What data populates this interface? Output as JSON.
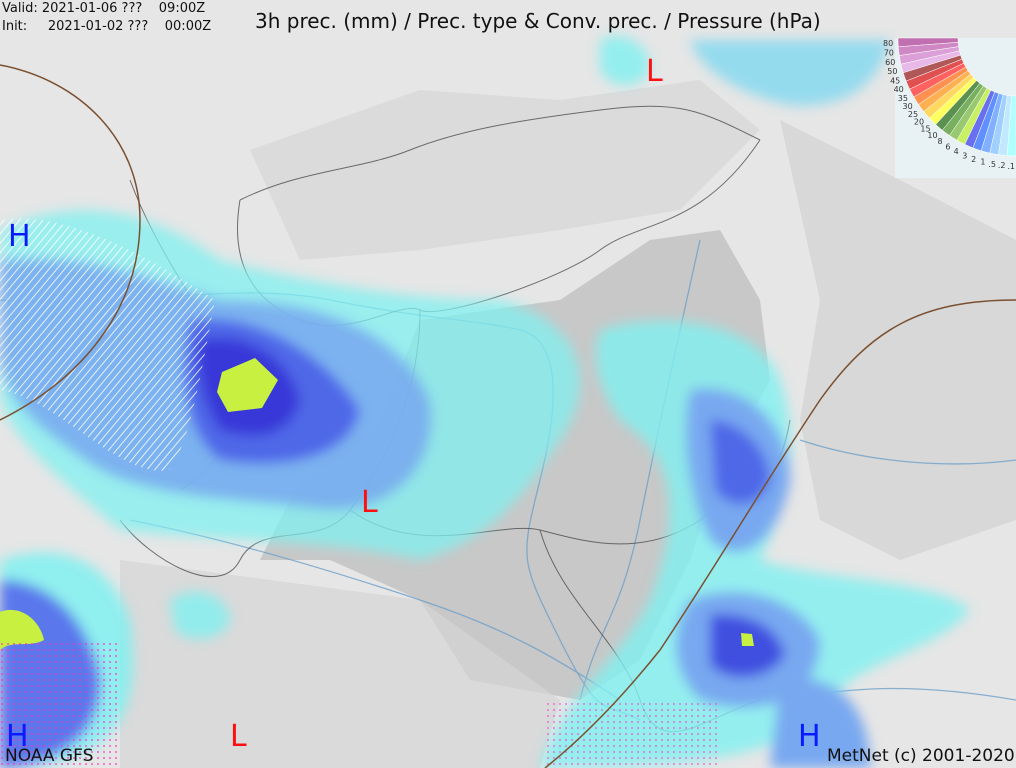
{
  "header": {
    "valid_label": "Valid:",
    "valid_date": "2021-01-06 ???",
    "valid_time": "09:00Z",
    "init_label": "Init:",
    "init_date": "2021-01-02 ???",
    "init_time": "00:00Z",
    "title": "3h prec. (mm) / Prec. type & Conv. prec. / Pressure (hPa)"
  },
  "pressure_centers": [
    {
      "label": "H",
      "color": "#0a1aff"
    },
    {
      "label": "L",
      "color": "#ff1010"
    },
    {
      "label": "L",
      "color": "#ff1010"
    },
    {
      "label": "H",
      "color": "#0a1aff"
    },
    {
      "label": "L",
      "color": "#ff1010"
    },
    {
      "label": "H",
      "color": "#0a1aff"
    }
  ],
  "legend": {
    "values": [
      "80",
      "70",
      "60",
      "50",
      "45",
      "40",
      "35",
      "30",
      "25",
      "20",
      "15",
      "10",
      "8",
      "6",
      "4",
      "3",
      "2",
      "1",
      ".5",
      ".2",
      ".1"
    ],
    "colors": [
      "#c070b0",
      "#d088c4",
      "#dca0d8",
      "#e8b8e8",
      "#b05858",
      "#e05050",
      "#ff6060",
      "#ff9050",
      "#ffb050",
      "#ffd860",
      "#ffff60",
      "#5a9050",
      "#78b060",
      "#98c870",
      "#c8f060",
      "#6870f0",
      "#6090ff",
      "#80b0ff",
      "#a0d0ff",
      "#c0e8ff",
      "#b0ffff"
    ]
  },
  "footer": {
    "source": "NOAA GFS",
    "copyright": "MetNet (c) 2001-2020"
  },
  "colors": {
    "precip_light": "#80f0f0",
    "precip_mid": "#70a8f0",
    "precip_heavy": "#4050e0",
    "precip_max": "#c8f040",
    "convective_hatch": "#ff30c0"
  }
}
